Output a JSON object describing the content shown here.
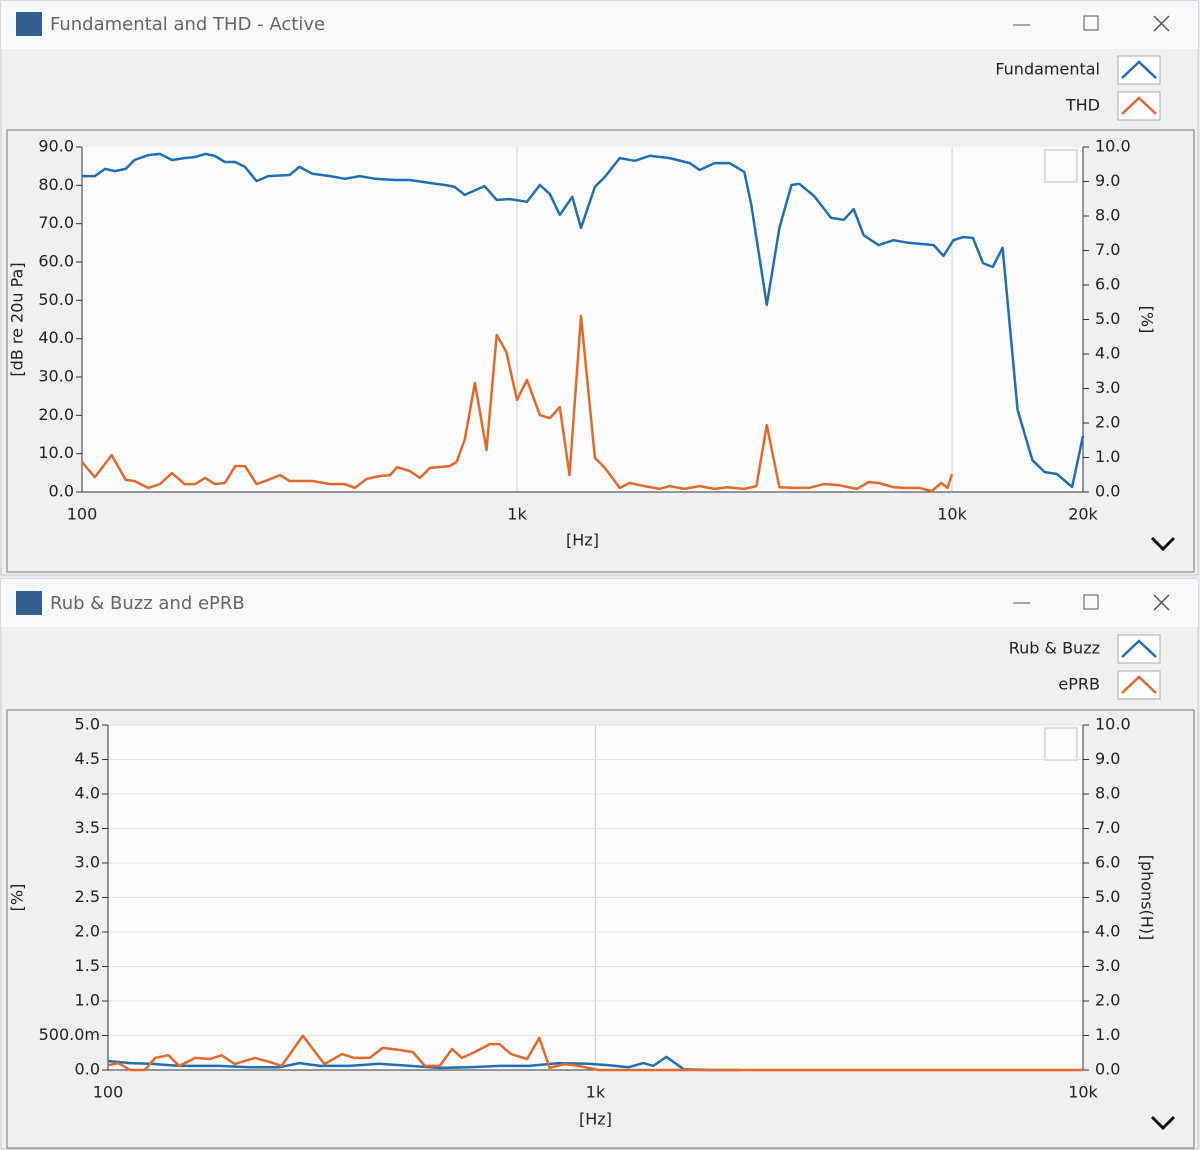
{
  "windows": [
    {
      "title": "Fundamental and THD - Active"
    },
    {
      "title": "Rub & Buzz and ePRB"
    }
  ],
  "chart_data": [
    {
      "type": "line",
      "xlog": true,
      "xgrid": true,
      "ygrid": false,
      "legend": "upper right",
      "x_label": "[Hz]",
      "y_label": "[dB re 20u Pa]",
      "y2_label": "[%]",
      "xlim": [
        100,
        20000
      ],
      "xticks": [
        100,
        {
          "value": 1000,
          "label": "1k"
        },
        {
          "value": 10000,
          "label": "10k"
        },
        {
          "value": 20000,
          "label": "20k"
        }
      ],
      "ylim": [
        0,
        90
      ],
      "yticks": [
        {
          "value": 0,
          "label": "0.0"
        },
        {
          "value": 10,
          "label": "10.0"
        },
        {
          "value": 20,
          "label": "20.0"
        },
        {
          "value": 30,
          "label": "30.0"
        },
        {
          "value": 40,
          "label": "40.0"
        },
        {
          "value": 50,
          "label": "50.0"
        },
        {
          "value": 60,
          "label": "60.0"
        },
        {
          "value": 70,
          "label": "70.0"
        },
        {
          "value": 80,
          "label": "80.0"
        },
        {
          "value": 90,
          "label": "90.0"
        }
      ],
      "y2lim": [
        0,
        10
      ],
      "y2ticks": [
        {
          "value": 0,
          "label": "0.0"
        },
        {
          "value": 1,
          "label": "1.0"
        },
        {
          "value": 2,
          "label": "2.0"
        },
        {
          "value": 3,
          "label": "3.0"
        },
        {
          "value": 4,
          "label": "4.0"
        },
        {
          "value": 5,
          "label": "5.0"
        },
        {
          "value": 6,
          "label": "6.0"
        },
        {
          "value": 7,
          "label": "7.0"
        },
        {
          "value": 8,
          "label": "8.0"
        },
        {
          "value": 9,
          "label": "9.0"
        },
        {
          "value": 10,
          "label": "10.0"
        }
      ],
      "series": [
        {
          "name": "Fundamental",
          "color": "#1f6fb2",
          "axis": "y",
          "x": [
            100,
            107,
            113,
            119,
            126,
            132,
            142,
            151,
            161,
            172,
            182,
            192,
            202,
            213,
            225,
            237,
            252,
            268,
            300,
            316,
            339,
            372,
            402,
            435,
            472,
            524,
            567,
            631,
            683,
            719,
            758,
            842,
            898,
            964,
            1054,
            1129,
            1190,
            1254,
            1340,
            1403,
            1510,
            1592,
            1722,
            1866,
            2017,
            2245,
            2495,
            2628,
            2846,
            3079,
            3330,
            3455,
            3752,
            4010,
            4276,
            4456,
            4821,
            5272,
            5640,
            5943,
            6263,
            6777,
            7336,
            7937,
            9073,
            9560,
            10070,
            10600,
            11170,
            11780,
            12400,
            13070,
            14150,
            15300,
            16330,
            17420,
            18880,
            20000
          ],
          "values": [
            82.4,
            82.4,
            84.3,
            83.7,
            84.3,
            86.6,
            87.9,
            88.2,
            86.6,
            87.1,
            87.4,
            88.2,
            87.7,
            86.1,
            86.1,
            84.8,
            81.1,
            82.4,
            82.7,
            84.8,
            83.0,
            82.4,
            81.7,
            82.4,
            81.7,
            81.4,
            81.4,
            80.6,
            80.1,
            79.6,
            77.5,
            79.8,
            76.2,
            76.4,
            75.7,
            80.1,
            77.7,
            72.3,
            77.0,
            68.9,
            79.6,
            82.2,
            87.1,
            86.4,
            87.7,
            87.1,
            85.8,
            84.0,
            85.8,
            85.8,
            83.5,
            74.9,
            48.8,
            68.9,
            80.1,
            80.4,
            77.2,
            71.5,
            71.0,
            73.8,
            67.0,
            64.4,
            65.7,
            65.0,
            64.4,
            61.6,
            65.7,
            66.5,
            66.3,
            59.7,
            58.7,
            63.7,
            21.4,
            8.3,
            5.2,
            4.7,
            1.3,
            14.6
          ]
        },
        {
          "name": "THD",
          "color": "#e2692c",
          "axis": "y2",
          "x": [
            100,
            107,
            117,
            126,
            132,
            142,
            151,
            161,
            172,
            182,
            192,
            202,
            213,
            225,
            237,
            252,
            268,
            285,
            300,
            339,
            372,
            402,
            424,
            451,
            483,
            511,
            530,
            567,
            598,
            631,
            700,
            726,
            758,
            800,
            851,
            898,
            945,
            1000,
            1054,
            1129,
            1190,
            1254,
            1320,
            1403,
            1510,
            1592,
            1722,
            1815,
            1964,
            2122,
            2245,
            2428,
            2628,
            2846,
            3040,
            3330,
            3551,
            3752,
            4010,
            4338,
            4689,
            5076,
            5490,
            6040,
            6440,
            6777,
            7336,
            7769,
            8417,
            8983,
            9452,
            9760,
            10000
          ],
          "values": [
            0.87,
            0.43,
            1.07,
            0.35,
            0.32,
            0.12,
            0.23,
            0.55,
            0.23,
            0.23,
            0.41,
            0.23,
            0.26,
            0.75,
            0.75,
            0.23,
            0.35,
            0.49,
            0.32,
            0.32,
            0.23,
            0.23,
            0.12,
            0.38,
            0.46,
            0.49,
            0.72,
            0.61,
            0.41,
            0.7,
            0.75,
            0.87,
            1.51,
            3.16,
            1.22,
            4.55,
            4.06,
            2.67,
            3.25,
            2.23,
            2.14,
            2.46,
            0.49,
            5.1,
            0.99,
            0.7,
            0.12,
            0.26,
            0.17,
            0.09,
            0.17,
            0.09,
            0.17,
            0.09,
            0.14,
            0.09,
            0.17,
            1.94,
            0.14,
            0.12,
            0.12,
            0.23,
            0.2,
            0.09,
            0.29,
            0.26,
            0.14,
            0.12,
            0.12,
            0.03,
            0.26,
            0.12,
            0.52
          ]
        }
      ]
    },
    {
      "type": "line",
      "xlog": true,
      "xgrid": true,
      "ygrid": true,
      "legend": "upper right",
      "x_label": "[Hz]",
      "y_label": "[%]",
      "y2_label": "[phons(H)]",
      "xlim": [
        100,
        10000
      ],
      "xticks": [
        100,
        {
          "value": 1000,
          "label": "1k"
        },
        {
          "value": 10000,
          "label": "10k"
        }
      ],
      "ylim": [
        0,
        5
      ],
      "yticks": [
        {
          "value": 0,
          "label": "0.0"
        },
        {
          "value": 0.5,
          "label": "500.0m"
        },
        {
          "value": 1,
          "label": "1.0"
        },
        1.5,
        {
          "value": 2,
          "label": "2.0"
        },
        2.5,
        {
          "value": 3,
          "label": "3.0"
        },
        3.5,
        {
          "value": 4,
          "label": "4.0"
        },
        4.5,
        {
          "value": 5,
          "label": "5.0"
        }
      ],
      "y2lim": [
        0,
        10
      ],
      "y2ticks": [
        {
          "value": 0,
          "label": "0.0"
        },
        {
          "value": 1,
          "label": "1.0"
        },
        {
          "value": 2,
          "label": "2.0"
        },
        {
          "value": 3,
          "label": "3.0"
        },
        {
          "value": 4,
          "label": "4.0"
        },
        {
          "value": 5,
          "label": "5.0"
        },
        {
          "value": 6,
          "label": "6.0"
        },
        {
          "value": 7,
          "label": "7.0"
        },
        {
          "value": 8,
          "label": "8.0"
        },
        {
          "value": 9,
          "label": "9.0"
        },
        {
          "value": 10,
          "label": "10.0"
        }
      ],
      "series": [
        {
          "name": "Rub & Buzz",
          "color": "#1f6fb2",
          "axis": "y",
          "x": [
            100,
            111,
            122,
            140,
            169,
            195,
            225,
            247,
            272,
            313,
            360,
            416,
            479,
            552,
            635,
            731,
            842,
            968,
            1067,
            1169,
            1254,
            1314,
            1398,
            1517,
            1712,
            1978
          ],
          "values": [
            0.13,
            0.1,
            0.09,
            0.06,
            0.06,
            0.04,
            0.04,
            0.1,
            0.06,
            0.06,
            0.09,
            0.06,
            0.03,
            0.04,
            0.06,
            0.06,
            0.1,
            0.09,
            0.07,
            0.04,
            0.1,
            0.06,
            0.19,
            0.01,
            0,
            0
          ]
        },
        {
          "name": "ePRB",
          "color": "#e2692c",
          "axis": "y2",
          "x": [
            100,
            105,
            111,
            119,
            125,
            133,
            140,
            151,
            162,
            171,
            182,
            200,
            215,
            227,
            251,
            278,
            302,
            320,
            344,
            366,
            397,
            422,
            447,
            479,
            508,
            532,
            565,
            607,
            635,
            671,
            724,
            767,
            805,
            865,
            923,
            1014,
            10000
          ],
          "values": [
            0.14,
            0.2,
            0,
            0,
            0.35,
            0.43,
            0.12,
            0.35,
            0.32,
            0.43,
            0.17,
            0.35,
            0.23,
            0.12,
            0.99,
            0.17,
            0.46,
            0.35,
            0.35,
            0.64,
            0.58,
            0.52,
            0.12,
            0.12,
            0.61,
            0.35,
            0.52,
            0.75,
            0.75,
            0.46,
            0.32,
            0.93,
            0.06,
            0.17,
            0.12,
            0,
            0
          ]
        }
      ]
    }
  ]
}
